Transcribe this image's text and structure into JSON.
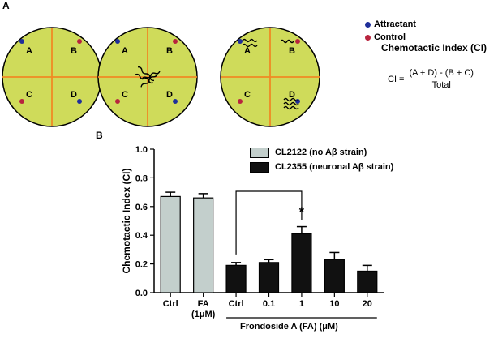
{
  "panel_a": {
    "letter": "A",
    "plates": [
      {
        "quadrants": [
          "A",
          "B",
          "C",
          "D"
        ],
        "worms": "center"
      },
      {
        "quadrants": [
          "A",
          "B",
          "C",
          "D"
        ],
        "worms": "center-cluster"
      },
      {
        "quadrants": [
          "A",
          "B",
          "C",
          "D"
        ],
        "worms": "distributed"
      }
    ],
    "legend": {
      "attractant": "Attractant",
      "control": "Control"
    },
    "ci_title": "Chemotactic Index (CI)",
    "formula": {
      "lhs": "CI =",
      "numerator": "(A + D) - (B + C)",
      "denominator": "Total"
    }
  },
  "panel_b": {
    "letter": "B",
    "legend": {
      "strain1": "CL2122 (no Aβ strain)",
      "strain2": "CL2355 (neuronal Aβ strain)"
    },
    "x_group_label": "Frondoside A (FA) (μM)"
  },
  "colors": {
    "plate": "#cfdb5a",
    "divider": "#f08a24",
    "attractant": "#1f2f9a",
    "control": "#b8243e",
    "bar_light": "#c3cfcc",
    "bar_dark": "#111111"
  },
  "chart_data": {
    "type": "bar",
    "ylabel": "Chemotactic Index (CI)",
    "ylim": [
      0,
      1.0
    ],
    "yticks": [
      "0.0",
      "0.2",
      "0.4",
      "0.6",
      "0.8",
      "1.0"
    ],
    "categories": [
      "Ctrl",
      "FA (1μM)",
      "Ctrl",
      "0.1",
      "1",
      "10",
      "20"
    ],
    "tick_labels": [
      [
        "Ctrl"
      ],
      [
        "FA",
        "(1μM)"
      ],
      [
        "Ctrl"
      ],
      [
        "0.1"
      ],
      [
        "1"
      ],
      [
        "10"
      ],
      [
        "20"
      ]
    ],
    "series": [
      {
        "name": "CL2122 (no Aβ strain)",
        "values": [
          0.67,
          0.66,
          null,
          null,
          null,
          null,
          null
        ],
        "errors": [
          0.03,
          0.03,
          null,
          null,
          null,
          null,
          null
        ]
      },
      {
        "name": "CL2355 (neuronal Aβ strain)",
        "values": [
          null,
          null,
          0.19,
          0.21,
          0.41,
          0.23,
          0.15
        ],
        "errors": [
          null,
          null,
          0.02,
          0.02,
          0.05,
          0.05,
          0.04
        ]
      }
    ],
    "significance": {
      "from": 2,
      "to": 4,
      "marker": "*"
    }
  }
}
